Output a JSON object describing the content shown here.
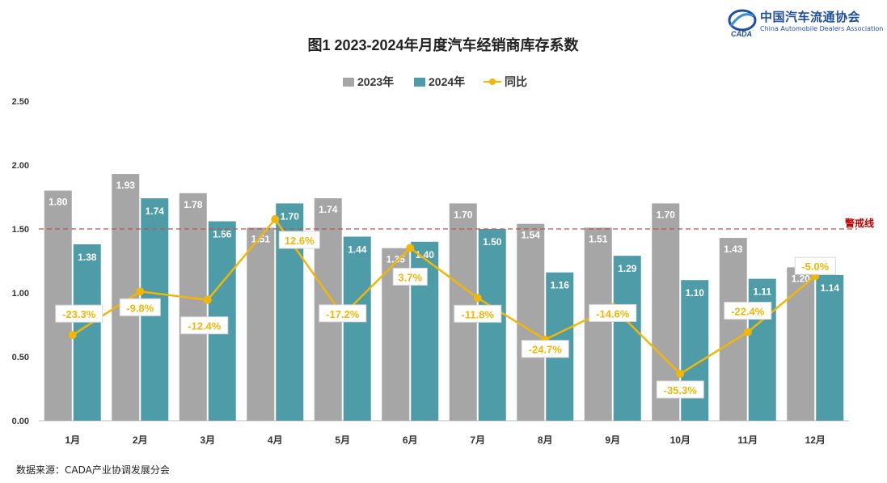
{
  "logo": {
    "name_cn": "中国汽车流通协会",
    "name_en": "China Automobile Dealers Association",
    "badge": "CADA"
  },
  "source_note": "数据来源：CADA产业协调发展分会",
  "colors": {
    "series_2023": "#a6a6a6",
    "series_2024": "#4f9ca9",
    "yoy_line": "#f2b705",
    "warning_line": "#c0504d",
    "title": "#222222"
  },
  "chart_data": {
    "type": "bar",
    "title": "图1  2023-2024年月度汽车经销商库存系数",
    "categories": [
      "1月",
      "2月",
      "3月",
      "4月",
      "5月",
      "6月",
      "7月",
      "8月",
      "9月",
      "10月",
      "11月",
      "12月"
    ],
    "series": [
      {
        "name": "2023年",
        "type": "bar",
        "values": [
          1.8,
          1.93,
          1.78,
          1.51,
          1.74,
          1.35,
          1.7,
          1.54,
          1.51,
          1.7,
          1.43,
          1.2
        ]
      },
      {
        "name": "2024年",
        "type": "bar",
        "values": [
          1.38,
          1.74,
          1.56,
          1.7,
          1.44,
          1.4,
          1.5,
          1.16,
          1.29,
          1.1,
          1.11,
          1.14
        ]
      },
      {
        "name": "同比",
        "type": "line",
        "values": [
          -23.3,
          -9.8,
          -12.4,
          12.6,
          -17.2,
          3.7,
          -11.8,
          -24.7,
          -14.6,
          -35.3,
          -22.4,
          -5.0
        ],
        "labels": [
          "-23.3%",
          "-9.8%",
          "-12.4%",
          "12.6%",
          "-17.2%",
          "3.7%",
          "-11.8%",
          "-24.7%",
          "-14.6%",
          "-35.3%",
          "-22.4%",
          "-5.0%"
        ]
      }
    ],
    "yticks": [
      "0.00",
      "0.50",
      "1.00",
      "1.50",
      "2.00",
      "2.50"
    ],
    "ylim": [
      0,
      2.5
    ],
    "warning_line": {
      "value": 1.5,
      "label": "警戒线"
    },
    "legend_position": "top-center",
    "grid": false
  }
}
